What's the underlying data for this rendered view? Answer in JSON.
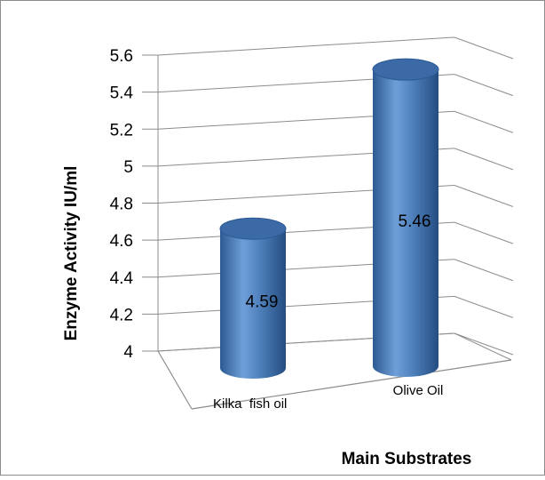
{
  "chart_data": {
    "type": "bar",
    "style": "3d-cylinder",
    "categories": [
      "Kilka  fish oil",
      "Olive Oil"
    ],
    "values": [
      4.59,
      5.46
    ],
    "data_labels": [
      "4.59",
      "5.46"
    ],
    "ylim": [
      4,
      5.6
    ],
    "yticks": [
      "4",
      "4.2",
      "4.4",
      "4.6",
      "4.8",
      "5",
      "5.2",
      "5.4",
      "5.6"
    ],
    "title": "",
    "xlabel": "Main Substrates",
    "ylabel": "Enzyme Activity IU/ml",
    "grid": true,
    "legend": "none",
    "bar_color": "#4f81bd"
  }
}
